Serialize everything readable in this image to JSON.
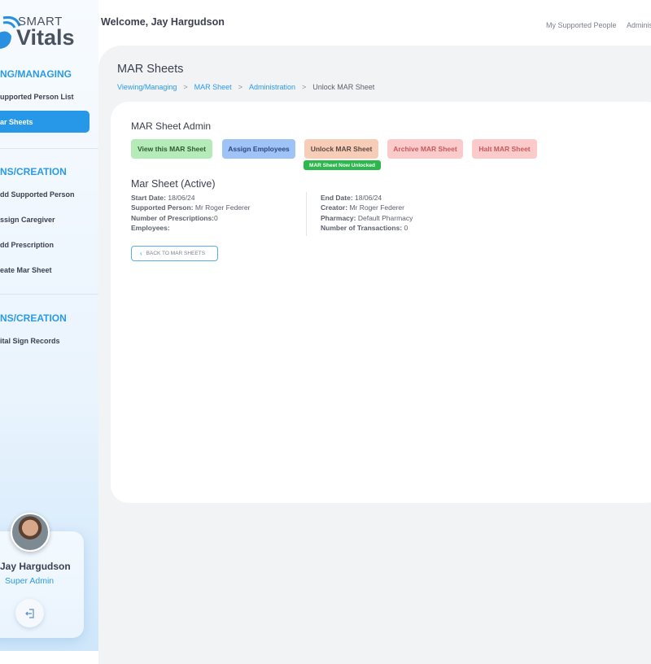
{
  "sidebar": {
    "logo_top": "SMART",
    "logo_bottom": "Vitals",
    "sections": [
      {
        "label": "NG/MANAGING",
        "items": [
          "upported Person List",
          "ar Sheets"
        ]
      },
      {
        "label": "NS/CREATION",
        "items": [
          "dd Supported Person",
          "ssign Caregiver",
          "dd Prescription",
          "eate Mar Sheet"
        ]
      },
      {
        "label": "NS/CREATION",
        "items": [
          "ital Sign Records"
        ]
      }
    ],
    "active_item": "ar Sheets",
    "user": {
      "name": "Jay Hargudson",
      "role": "Super Admin"
    },
    "logout_icon": "logout-icon"
  },
  "header": {
    "welcome": "Welcome, Jay Hargudson",
    "nav": [
      "My Supported People",
      "Adminis"
    ]
  },
  "page": {
    "title": "MAR Sheets",
    "breadcrumb": [
      "Viewing/Managing",
      "MAR Sheet",
      "Administration",
      "Unlock MAR Sheet"
    ]
  },
  "admin": {
    "title": "MAR Sheet Admin",
    "buttons": [
      {
        "label": "View this MAR Sheet",
        "bg": "#b5ebb8",
        "color": "#2f5a33"
      },
      {
        "label": "Assign Employees",
        "bg": "#9fc2f7",
        "color": "#2c4a7a"
      },
      {
        "label": "Unlock MAR Sheet",
        "bg": "#f8cdb7",
        "color": "#5a4a44"
      },
      {
        "label": "Archive MAR Sheet",
        "bg": "#fbcaca",
        "color": "#c75b5b"
      },
      {
        "label": "Halt MAR Sheet",
        "bg": "#fbcaca",
        "color": "#c75b5b"
      }
    ],
    "status_badge": "MAR Sheet Now Unlocked"
  },
  "sheet": {
    "title": "Mar Sheet (Active)",
    "left": [
      [
        "Start Date:",
        "18/06/24"
      ],
      [
        "Supported Person:",
        "Mr Roger Federer"
      ],
      [
        "Number of Prescriptions:",
        "0"
      ],
      [
        "Employees:",
        ""
      ]
    ],
    "right": [
      [
        "End Date:",
        "18/06/24"
      ],
      [
        "Creator:",
        "Mr Roger Federer"
      ],
      [
        "Pharmacy:",
        "Default Pharmacy"
      ],
      [
        "Number of Transactions:",
        "0"
      ]
    ],
    "back_label": "BACK TO MAR SHEETS"
  }
}
